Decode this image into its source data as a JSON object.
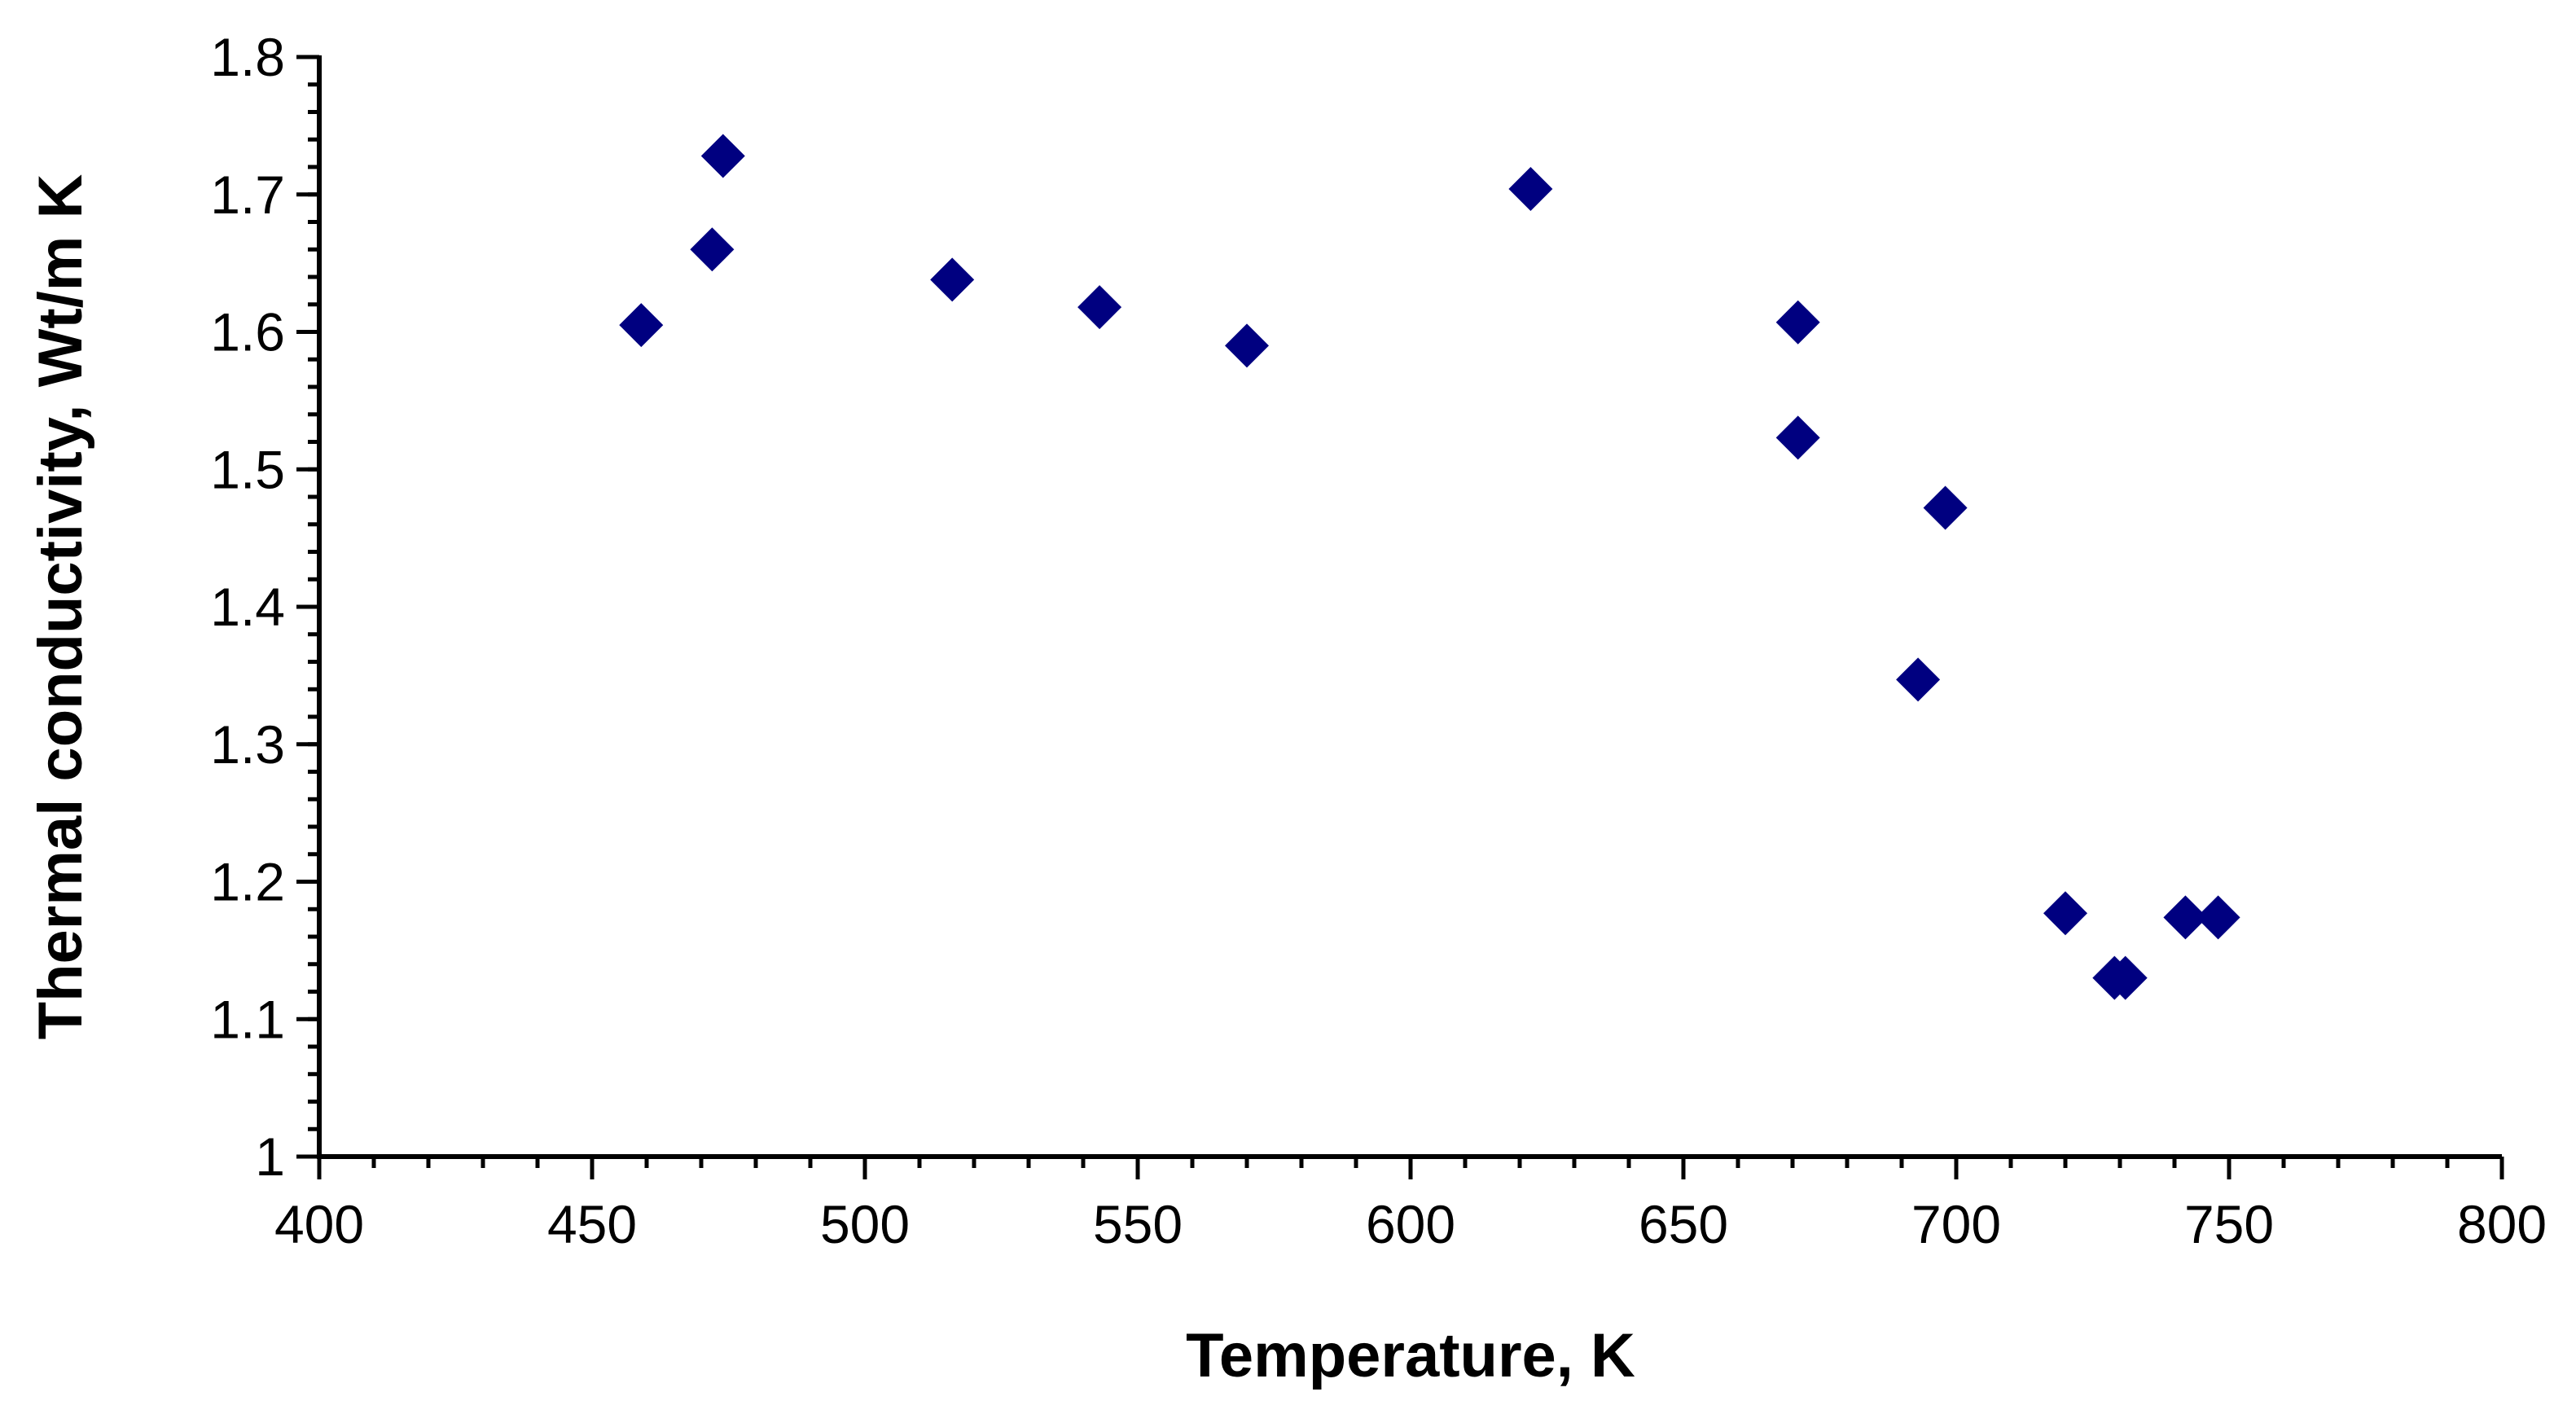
{
  "chart_data": {
    "type": "scatter",
    "title": "",
    "xlabel": "Temperature, K",
    "ylabel": "Thermal conductivity, Wt/m K",
    "xlim": [
      400,
      800
    ],
    "ylim": [
      1.0,
      1.8
    ],
    "x_ticks": [
      "400",
      "450",
      "500",
      "550",
      "600",
      "650",
      "700",
      "750",
      "800"
    ],
    "y_ticks": [
      "1",
      "1.1",
      "1.2",
      "1.3",
      "1.4",
      "1.5",
      "1.6",
      "1.7",
      "1.8"
    ],
    "x_minor_step": 10,
    "y_minor_step": 0.02,
    "grid": false,
    "legend": "none",
    "marker": "diamond",
    "marker_color": "#000080",
    "series": [
      {
        "x": [
          459,
          472,
          474,
          516,
          543,
          570,
          622,
          671,
          671,
          693,
          698,
          720,
          729,
          731,
          742,
          748
        ],
        "y": [
          1.605,
          1.66,
          1.728,
          1.638,
          1.618,
          1.59,
          1.704,
          1.607,
          1.523,
          1.347,
          1.472,
          1.177,
          1.13,
          1.13,
          1.174,
          1.174
        ]
      }
    ]
  }
}
